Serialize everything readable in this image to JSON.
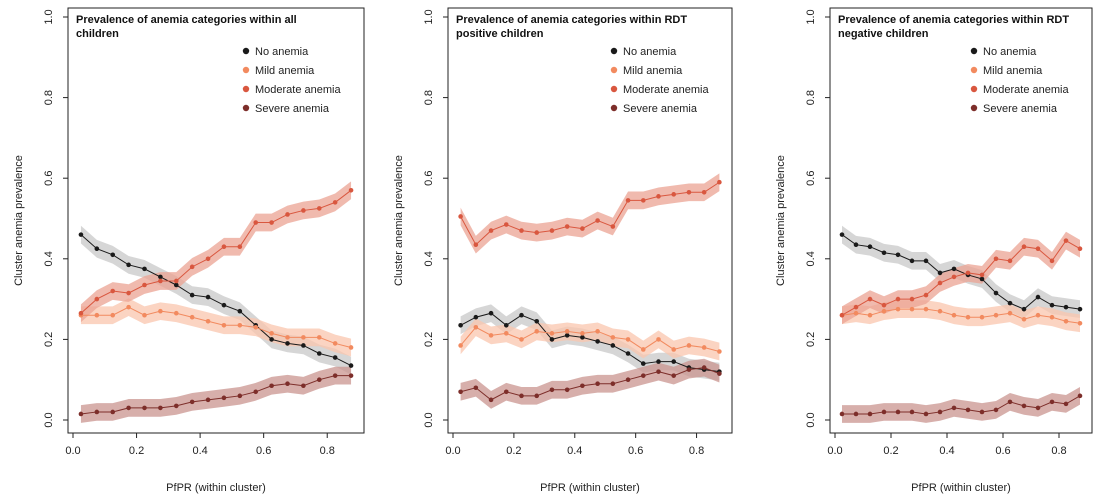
{
  "chart_data": [
    {
      "type": "line",
      "title_lines": [
        "Prevalence of anemia categories within all",
        "children"
      ],
      "xlabel": "PfPR (within cluster)",
      "ylabel": "Cluster anemia prevalence",
      "xlim": [
        0.0,
        0.9
      ],
      "ylim": [
        0.0,
        1.0
      ],
      "xticks": [
        "0.0",
        "0.2",
        "0.4",
        "0.6",
        "0.8"
      ],
      "yticks": [
        "0.0",
        "0.2",
        "0.4",
        "0.6",
        "0.8",
        "1.0"
      ],
      "legend_position": "top-right",
      "x": [
        0.025,
        0.075,
        0.125,
        0.175,
        0.225,
        0.275,
        0.325,
        0.375,
        0.425,
        0.475,
        0.525,
        0.575,
        0.625,
        0.675,
        0.725,
        0.775,
        0.825,
        0.875
      ],
      "series": [
        {
          "name": "No anemia",
          "color": "#1a1a1a",
          "band": "#c8c8c8",
          "values": [
            0.46,
            0.425,
            0.41,
            0.385,
            0.375,
            0.355,
            0.335,
            0.31,
            0.305,
            0.285,
            0.27,
            0.235,
            0.2,
            0.19,
            0.185,
            0.165,
            0.155,
            0.135
          ]
        },
        {
          "name": "Mild anemia",
          "color": "#f28a5f",
          "band": "#f9c6ad",
          "values": [
            0.26,
            0.26,
            0.26,
            0.28,
            0.26,
            0.27,
            0.265,
            0.255,
            0.245,
            0.235,
            0.235,
            0.23,
            0.215,
            0.205,
            0.205,
            0.205,
            0.19,
            0.18
          ]
        },
        {
          "name": "Moderate anemia",
          "color": "#d9573f",
          "band": "#eba393",
          "values": [
            0.265,
            0.3,
            0.32,
            0.315,
            0.335,
            0.345,
            0.345,
            0.38,
            0.4,
            0.43,
            0.43,
            0.49,
            0.49,
            0.51,
            0.52,
            0.525,
            0.54,
            0.57
          ]
        },
        {
          "name": "Severe anemia",
          "color": "#7d2e2a",
          "band": "#c9948f",
          "values": [
            0.015,
            0.02,
            0.02,
            0.03,
            0.03,
            0.03,
            0.035,
            0.045,
            0.05,
            0.055,
            0.06,
            0.07,
            0.085,
            0.09,
            0.085,
            0.1,
            0.11,
            0.11
          ]
        }
      ]
    },
    {
      "type": "line",
      "title_lines": [
        "Prevalence of anemia categories within RDT",
        "positive children"
      ],
      "xlabel": "PfPR (within cluster)",
      "ylabel": "Cluster anemia prevalence",
      "xlim": [
        0.0,
        0.9
      ],
      "ylim": [
        0.0,
        1.0
      ],
      "xticks": [
        "0.0",
        "0.2",
        "0.4",
        "0.6",
        "0.8"
      ],
      "yticks": [
        "0.0",
        "0.2",
        "0.4",
        "0.6",
        "0.8",
        "1.0"
      ],
      "legend_position": "top-right",
      "x": [
        0.025,
        0.075,
        0.125,
        0.175,
        0.225,
        0.275,
        0.325,
        0.375,
        0.425,
        0.475,
        0.525,
        0.575,
        0.625,
        0.675,
        0.725,
        0.775,
        0.825,
        0.875
      ],
      "series": [
        {
          "name": "No anemia",
          "color": "#1a1a1a",
          "band": "#c8c8c8",
          "values": [
            0.235,
            0.255,
            0.265,
            0.235,
            0.26,
            0.245,
            0.2,
            0.21,
            0.205,
            0.195,
            0.185,
            0.165,
            0.14,
            0.145,
            0.145,
            0.13,
            0.125,
            0.12
          ]
        },
        {
          "name": "Mild anemia",
          "color": "#f28a5f",
          "band": "#f9c6ad",
          "values": [
            0.185,
            0.23,
            0.21,
            0.215,
            0.2,
            0.22,
            0.215,
            0.22,
            0.215,
            0.22,
            0.205,
            0.2,
            0.175,
            0.2,
            0.175,
            0.185,
            0.18,
            0.17
          ]
        },
        {
          "name": "Moderate anemia",
          "color": "#d9573f",
          "band": "#eba393",
          "values": [
            0.505,
            0.435,
            0.47,
            0.485,
            0.47,
            0.465,
            0.47,
            0.48,
            0.475,
            0.495,
            0.48,
            0.545,
            0.545,
            0.555,
            0.56,
            0.565,
            0.565,
            0.59
          ]
        },
        {
          "name": "Severe anemia",
          "color": "#7d2e2a",
          "band": "#c9948f",
          "values": [
            0.07,
            0.08,
            0.05,
            0.07,
            0.06,
            0.06,
            0.075,
            0.075,
            0.085,
            0.09,
            0.09,
            0.1,
            0.11,
            0.12,
            0.11,
            0.125,
            0.13,
            0.115
          ]
        }
      ]
    },
    {
      "type": "line",
      "title_lines": [
        "Prevalence of anemia categories within RDT",
        "negative children"
      ],
      "xlabel": "PfPR (within cluster)",
      "ylabel": "Cluster anemia prevalence",
      "xlim": [
        0.0,
        0.9
      ],
      "ylim": [
        0.0,
        1.0
      ],
      "xticks": [
        "0.0",
        "0.2",
        "0.4",
        "0.6",
        "0.8"
      ],
      "yticks": [
        "0.0",
        "0.2",
        "0.4",
        "0.6",
        "0.8",
        "1.0"
      ],
      "legend_position": "top-right",
      "x": [
        0.025,
        0.075,
        0.125,
        0.175,
        0.225,
        0.275,
        0.325,
        0.375,
        0.425,
        0.475,
        0.525,
        0.575,
        0.625,
        0.675,
        0.725,
        0.775,
        0.825,
        0.875
      ],
      "series": [
        {
          "name": "No anemia",
          "color": "#1a1a1a",
          "band": "#c8c8c8",
          "values": [
            0.46,
            0.435,
            0.43,
            0.415,
            0.41,
            0.395,
            0.395,
            0.365,
            0.375,
            0.36,
            0.35,
            0.315,
            0.29,
            0.275,
            0.305,
            0.285,
            0.28,
            0.275
          ]
        },
        {
          "name": "Mild anemia",
          "color": "#f28a5f",
          "band": "#f9c6ad",
          "values": [
            0.26,
            0.265,
            0.26,
            0.27,
            0.275,
            0.275,
            0.275,
            0.27,
            0.26,
            0.255,
            0.255,
            0.26,
            0.265,
            0.25,
            0.26,
            0.255,
            0.245,
            0.24
          ]
        },
        {
          "name": "Moderate anemia",
          "color": "#d9573f",
          "band": "#eba393",
          "values": [
            0.26,
            0.28,
            0.3,
            0.285,
            0.3,
            0.3,
            0.31,
            0.34,
            0.355,
            0.365,
            0.36,
            0.4,
            0.395,
            0.43,
            0.425,
            0.395,
            0.445,
            0.425
          ]
        },
        {
          "name": "Severe anemia",
          "color": "#7d2e2a",
          "band": "#c9948f",
          "values": [
            0.015,
            0.015,
            0.015,
            0.02,
            0.02,
            0.02,
            0.015,
            0.02,
            0.03,
            0.025,
            0.02,
            0.025,
            0.045,
            0.035,
            0.03,
            0.045,
            0.04,
            0.06
          ]
        }
      ]
    }
  ]
}
